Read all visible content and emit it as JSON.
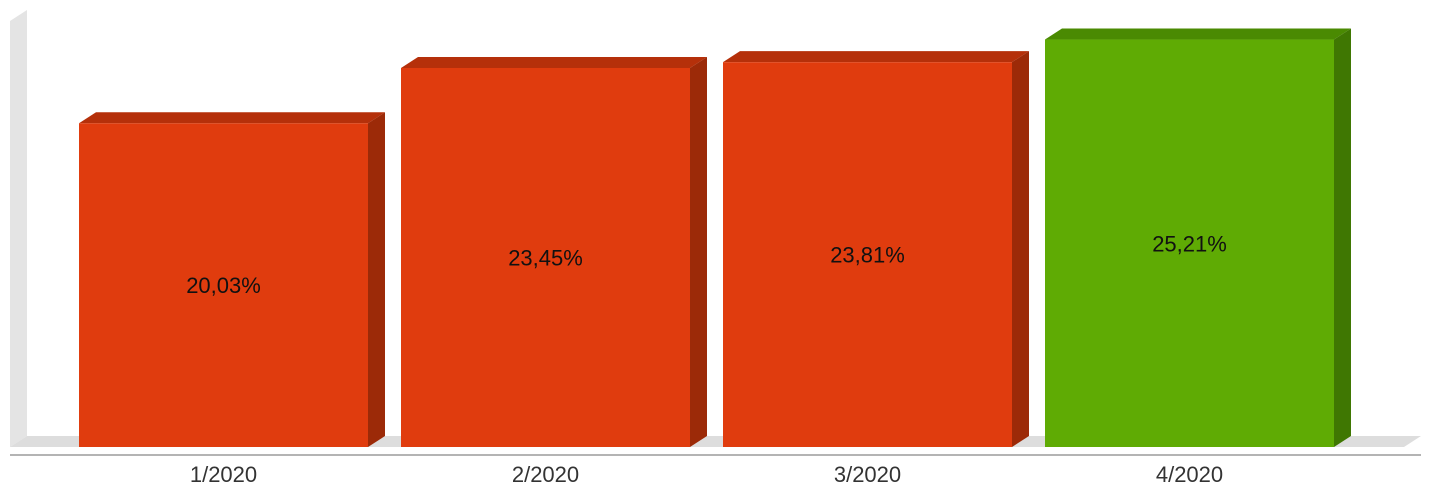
{
  "chart_data": {
    "type": "bar",
    "categories": [
      "1/2020",
      "2/2020",
      "3/2020",
      "4/2020"
    ],
    "values": [
      20.03,
      23.45,
      23.81,
      25.21
    ],
    "value_labels": [
      "20,03%",
      "23,45%",
      "23,81%",
      "25,21%"
    ],
    "title": "",
    "xlabel": "",
    "ylabel": "",
    "ylim": [
      0,
      25.8
    ],
    "grid": false,
    "legend": "none",
    "style": "3d",
    "colors": {
      "default_front": "#e03c0e",
      "default_top": "#b5300a",
      "default_side": "#9c2a08",
      "highlight_front": "#5fab04",
      "highlight_top": "#4a8a02",
      "highlight_side": "#3f7702",
      "floor": "#dddddd",
      "wall": "#e4e4e4",
      "axis_line": "#888888"
    },
    "highlight_index": 3
  }
}
